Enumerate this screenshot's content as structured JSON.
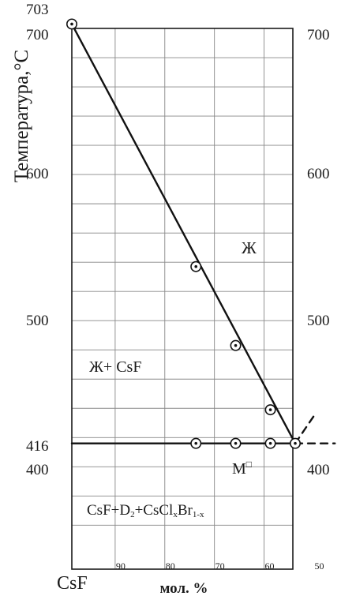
{
  "chart_data": {
    "type": "line",
    "title": "",
    "xlabel": "мол. %",
    "ylabel": "Температура,°C",
    "x_axis_left_label": "CsF",
    "x_ticks": [
      90,
      80,
      70,
      60,
      50
    ],
    "xlim": [
      100,
      45
    ],
    "ylim": [
      340,
      720
    ],
    "y_ticks_left": [
      {
        "value": 703,
        "label": "703"
      },
      {
        "value": 700,
        "label": "700"
      },
      {
        "value": 600,
        "label": "600"
      },
      {
        "value": 500,
        "label": "500"
      },
      {
        "value": 416,
        "label": "416"
      },
      {
        "value": 400,
        "label": "400"
      }
    ],
    "y_ticks_right": [
      {
        "value": 700,
        "label": "700"
      },
      {
        "value": 600,
        "label": "600"
      },
      {
        "value": 500,
        "label": "500"
      },
      {
        "value": 400,
        "label": "400"
      }
    ],
    "y_grid": [
      700,
      680,
      660,
      640,
      620,
      600,
      580,
      560,
      540,
      520,
      500,
      480,
      460,
      440,
      420,
      400,
      380,
      360
    ],
    "x_grid": [
      90,
      80,
      70,
      60,
      50
    ],
    "grid": true,
    "series": [
      {
        "style": "liquidus",
        "x": [
          100,
          55
        ],
        "y": [
          703,
          416
        ]
      },
      {
        "style": "eutectic",
        "x": [
          100,
          55
        ],
        "y": [
          416,
          416
        ]
      }
    ],
    "dashed_segments": [
      {
        "x": [
          55,
          47
        ],
        "y": [
          416,
          416
        ]
      },
      {
        "x": [
          55,
          51
        ],
        "y": [
          416,
          436
        ]
      }
    ],
    "points": [
      {
        "x": 100,
        "y": 703
      },
      {
        "x": 75,
        "y": 537
      },
      {
        "x": 67,
        "y": 483
      },
      {
        "x": 60,
        "y": 439
      },
      {
        "x": 75,
        "y": 416
      },
      {
        "x": 67,
        "y": 416
      },
      {
        "x": 60,
        "y": 416
      },
      {
        "x": 55,
        "y": 416
      }
    ],
    "annotations": [
      {
        "text": "Ж",
        "x": 52,
        "y": 547
      },
      {
        "text": "Ж+ CsF",
        "x": 83,
        "y": 471
      },
      {
        "text": "M",
        "x": 56,
        "y": 400,
        "marker": "□"
      },
      {
        "text": "CsF+D",
        "sub": "2",
        "text2": "+CsCl",
        "sub2": "x",
        "text3": "Br",
        "sub3": "1-x",
        "x": 73,
        "y": 361
      }
    ]
  }
}
